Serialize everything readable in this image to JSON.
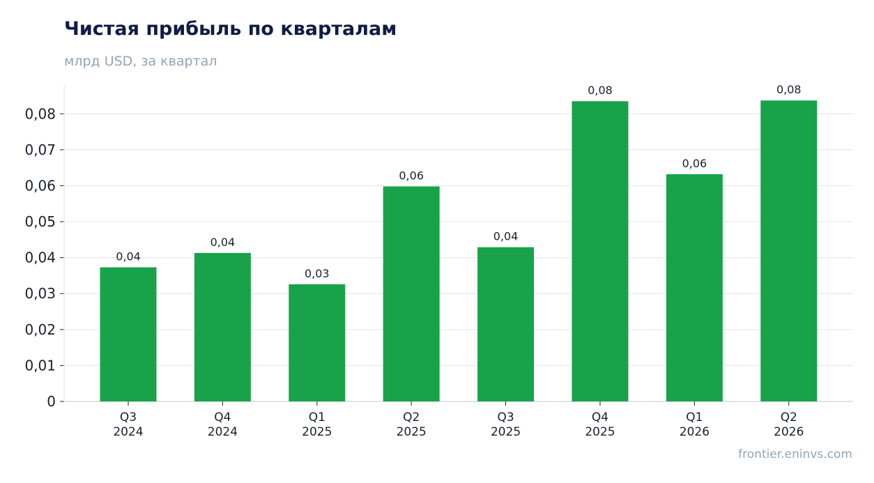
{
  "chart_data": {
    "type": "bar",
    "title": "Чистая прибыль по кварталам",
    "subtitle": "млрд USD, за квартал",
    "source": "frontier.eninvs.com",
    "categories": [
      [
        "Q3",
        "2024"
      ],
      [
        "Q4",
        "2024"
      ],
      [
        "Q1",
        "2025"
      ],
      [
        "Q2",
        "2025"
      ],
      [
        "Q3",
        "2025"
      ],
      [
        "Q4",
        "2025"
      ],
      [
        "Q1",
        "2026"
      ],
      [
        "Q2",
        "2026"
      ]
    ],
    "values": [
      0.0373,
      0.0413,
      0.0326,
      0.0598,
      0.0429,
      0.0835,
      0.0632,
      0.0837
    ],
    "data_labels": [
      "0,04",
      "0,04",
      "0,03",
      "0,06",
      "0,04",
      "0,08",
      "0,06",
      "0,08"
    ],
    "yticks": [
      0,
      0.01,
      0.02,
      0.03,
      0.04,
      0.05,
      0.06,
      0.07,
      0.08
    ],
    "ytick_labels": [
      "0",
      "0,01",
      "0,02",
      "0,03",
      "0,04",
      "0,05",
      "0,06",
      "0,07",
      "0,08"
    ],
    "ylim": [
      0,
      0.088
    ],
    "bar_color": "#18a34a",
    "grid": true,
    "legend": "none"
  }
}
